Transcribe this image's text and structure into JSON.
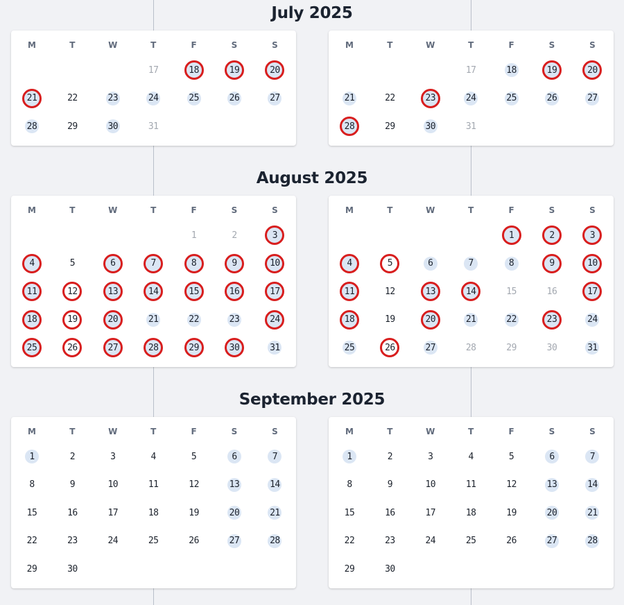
{
  "weekday_headers": [
    "M",
    "T",
    "W",
    "T",
    "F",
    "S",
    "S"
  ],
  "styles": {
    "circle_color": "#d81e1e",
    "highlight_color": "#dbe6f4"
  },
  "months": [
    {
      "title": "July 2025",
      "calendars": [
        {
          "rows": [
            [
              null,
              null,
              null,
              {
                "d": "17",
                "o": 1
              },
              {
                "d": "18",
                "h": 1,
                "c": 1
              },
              {
                "d": "19",
                "h": 1,
                "c": 1
              },
              {
                "d": "20",
                "h": 1,
                "c": 1
              }
            ],
            [
              {
                "d": "21",
                "h": 1,
                "c": 1
              },
              {
                "d": "22"
              },
              {
                "d": "23",
                "h": 1
              },
              {
                "d": "24",
                "h": 1
              },
              {
                "d": "25",
                "h": 1
              },
              {
                "d": "26",
                "h": 1
              },
              {
                "d": "27",
                "h": 1
              }
            ],
            [
              {
                "d": "28",
                "h": 1
              },
              {
                "d": "29"
              },
              {
                "d": "30",
                "h": 1
              },
              {
                "d": "31",
                "o": 1
              },
              null,
              null,
              null
            ]
          ]
        },
        {
          "rows": [
            [
              null,
              null,
              null,
              {
                "d": "17",
                "o": 1
              },
              {
                "d": "18",
                "h": 1
              },
              {
                "d": "19",
                "h": 1,
                "c": 1
              },
              {
                "d": "20",
                "h": 1,
                "c": 1
              }
            ],
            [
              {
                "d": "21",
                "h": 1
              },
              {
                "d": "22"
              },
              {
                "d": "23",
                "h": 1,
                "c": 1
              },
              {
                "d": "24",
                "h": 1
              },
              {
                "d": "25",
                "h": 1
              },
              {
                "d": "26",
                "h": 1
              },
              {
                "d": "27",
                "h": 1
              }
            ],
            [
              {
                "d": "28",
                "h": 1,
                "c": 1
              },
              {
                "d": "29"
              },
              {
                "d": "30",
                "h": 1
              },
              {
                "d": "31",
                "o": 1
              },
              null,
              null,
              null
            ]
          ]
        }
      ]
    },
    {
      "title": "August 2025",
      "calendars": [
        {
          "rows": [
            [
              null,
              null,
              null,
              null,
              {
                "d": "1",
                "o": 1
              },
              {
                "d": "2",
                "o": 1
              },
              {
                "d": "3",
                "h": 1,
                "c": 1
              }
            ],
            [
              {
                "d": "4",
                "h": 1,
                "c": 1
              },
              {
                "d": "5"
              },
              {
                "d": "6",
                "h": 1,
                "c": 1
              },
              {
                "d": "7",
                "h": 1,
                "c": 1
              },
              {
                "d": "8",
                "h": 1,
                "c": 1
              },
              {
                "d": "9",
                "h": 1,
                "c": 1
              },
              {
                "d": "10",
                "h": 1,
                "c": 1
              }
            ],
            [
              {
                "d": "11",
                "h": 1,
                "c": 1
              },
              {
                "d": "12",
                "c": 1
              },
              {
                "d": "13",
                "h": 1,
                "c": 1
              },
              {
                "d": "14",
                "h": 1,
                "c": 1
              },
              {
                "d": "15",
                "h": 1,
                "c": 1
              },
              {
                "d": "16",
                "h": 1,
                "c": 1
              },
              {
                "d": "17",
                "h": 1,
                "c": 1
              }
            ],
            [
              {
                "d": "18",
                "h": 1,
                "c": 1
              },
              {
                "d": "19",
                "c": 1
              },
              {
                "d": "20",
                "h": 1,
                "c": 1
              },
              {
                "d": "21",
                "h": 1
              },
              {
                "d": "22",
                "h": 1
              },
              {
                "d": "23",
                "h": 1
              },
              {
                "d": "24",
                "h": 1,
                "c": 1
              }
            ],
            [
              {
                "d": "25",
                "h": 1,
                "c": 1
              },
              {
                "d": "26",
                "c": 1
              },
              {
                "d": "27",
                "h": 1,
                "c": 1
              },
              {
                "d": "28",
                "h": 1,
                "c": 1
              },
              {
                "d": "29",
                "h": 1,
                "c": 1
              },
              {
                "d": "30",
                "h": 1,
                "c": 1
              },
              {
                "d": "31",
                "h": 1
              }
            ]
          ]
        },
        {
          "rows": [
            [
              null,
              null,
              null,
              null,
              {
                "d": "1",
                "h": 1,
                "c": 1
              },
              {
                "d": "2",
                "h": 1,
                "c": 1
              },
              {
                "d": "3",
                "h": 1,
                "c": 1
              }
            ],
            [
              {
                "d": "4",
                "h": 1,
                "c": 1
              },
              {
                "d": "5",
                "c": 1
              },
              {
                "d": "6",
                "h": 1
              },
              {
                "d": "7",
                "h": 1
              },
              {
                "d": "8",
                "h": 1
              },
              {
                "d": "9",
                "h": 1,
                "c": 1
              },
              {
                "d": "10",
                "h": 1,
                "c": 1
              }
            ],
            [
              {
                "d": "11",
                "h": 1,
                "c": 1
              },
              {
                "d": "12"
              },
              {
                "d": "13",
                "h": 1,
                "c": 1
              },
              {
                "d": "14",
                "h": 1,
                "c": 1
              },
              {
                "d": "15",
                "o": 1
              },
              {
                "d": "16",
                "o": 1
              },
              {
                "d": "17",
                "h": 1,
                "c": 1
              }
            ],
            [
              {
                "d": "18",
                "h": 1,
                "c": 1
              },
              {
                "d": "19"
              },
              {
                "d": "20",
                "h": 1,
                "c": 1
              },
              {
                "d": "21",
                "h": 1
              },
              {
                "d": "22",
                "h": 1
              },
              {
                "d": "23",
                "h": 1,
                "c": 1
              },
              {
                "d": "24",
                "h": 1
              }
            ],
            [
              {
                "d": "25",
                "h": 1
              },
              {
                "d": "26",
                "c": 1
              },
              {
                "d": "27",
                "h": 1
              },
              {
                "d": "28",
                "o": 1
              },
              {
                "d": "29",
                "o": 1
              },
              {
                "d": "30",
                "o": 1
              },
              {
                "d": "31",
                "h": 1
              }
            ]
          ]
        }
      ]
    },
    {
      "title": "September 2025",
      "calendars": [
        {
          "rows": [
            [
              {
                "d": "1",
                "h": 1
              },
              {
                "d": "2"
              },
              {
                "d": "3"
              },
              {
                "d": "4"
              },
              {
                "d": "5"
              },
              {
                "d": "6",
                "h": 1
              },
              {
                "d": "7",
                "h": 1
              }
            ],
            [
              {
                "d": "8"
              },
              {
                "d": "9"
              },
              {
                "d": "10"
              },
              {
                "d": "11"
              },
              {
                "d": "12"
              },
              {
                "d": "13",
                "h": 1
              },
              {
                "d": "14",
                "h": 1
              }
            ],
            [
              {
                "d": "15"
              },
              {
                "d": "16"
              },
              {
                "d": "17"
              },
              {
                "d": "18"
              },
              {
                "d": "19"
              },
              {
                "d": "20",
                "h": 1
              },
              {
                "d": "21",
                "h": 1
              }
            ],
            [
              {
                "d": "22"
              },
              {
                "d": "23"
              },
              {
                "d": "24"
              },
              {
                "d": "25"
              },
              {
                "d": "26"
              },
              {
                "d": "27",
                "h": 1
              },
              {
                "d": "28",
                "h": 1
              }
            ],
            [
              {
                "d": "29"
              },
              {
                "d": "30"
              },
              null,
              null,
              null,
              null,
              null
            ]
          ]
        },
        {
          "rows": [
            [
              {
                "d": "1",
                "h": 1
              },
              {
                "d": "2"
              },
              {
                "d": "3"
              },
              {
                "d": "4"
              },
              {
                "d": "5"
              },
              {
                "d": "6",
                "h": 1
              },
              {
                "d": "7",
                "h": 1
              }
            ],
            [
              {
                "d": "8"
              },
              {
                "d": "9"
              },
              {
                "d": "10"
              },
              {
                "d": "11"
              },
              {
                "d": "12"
              },
              {
                "d": "13",
                "h": 1
              },
              {
                "d": "14",
                "h": 1
              }
            ],
            [
              {
                "d": "15"
              },
              {
                "d": "16"
              },
              {
                "d": "17"
              },
              {
                "d": "18"
              },
              {
                "d": "19"
              },
              {
                "d": "20",
                "h": 1
              },
              {
                "d": "21",
                "h": 1
              }
            ],
            [
              {
                "d": "22"
              },
              {
                "d": "23"
              },
              {
                "d": "24"
              },
              {
                "d": "25"
              },
              {
                "d": "26"
              },
              {
                "d": "27",
                "h": 1
              },
              {
                "d": "28",
                "h": 1
              }
            ],
            [
              {
                "d": "29"
              },
              {
                "d": "30"
              },
              null,
              null,
              null,
              null,
              null
            ]
          ]
        }
      ]
    }
  ]
}
